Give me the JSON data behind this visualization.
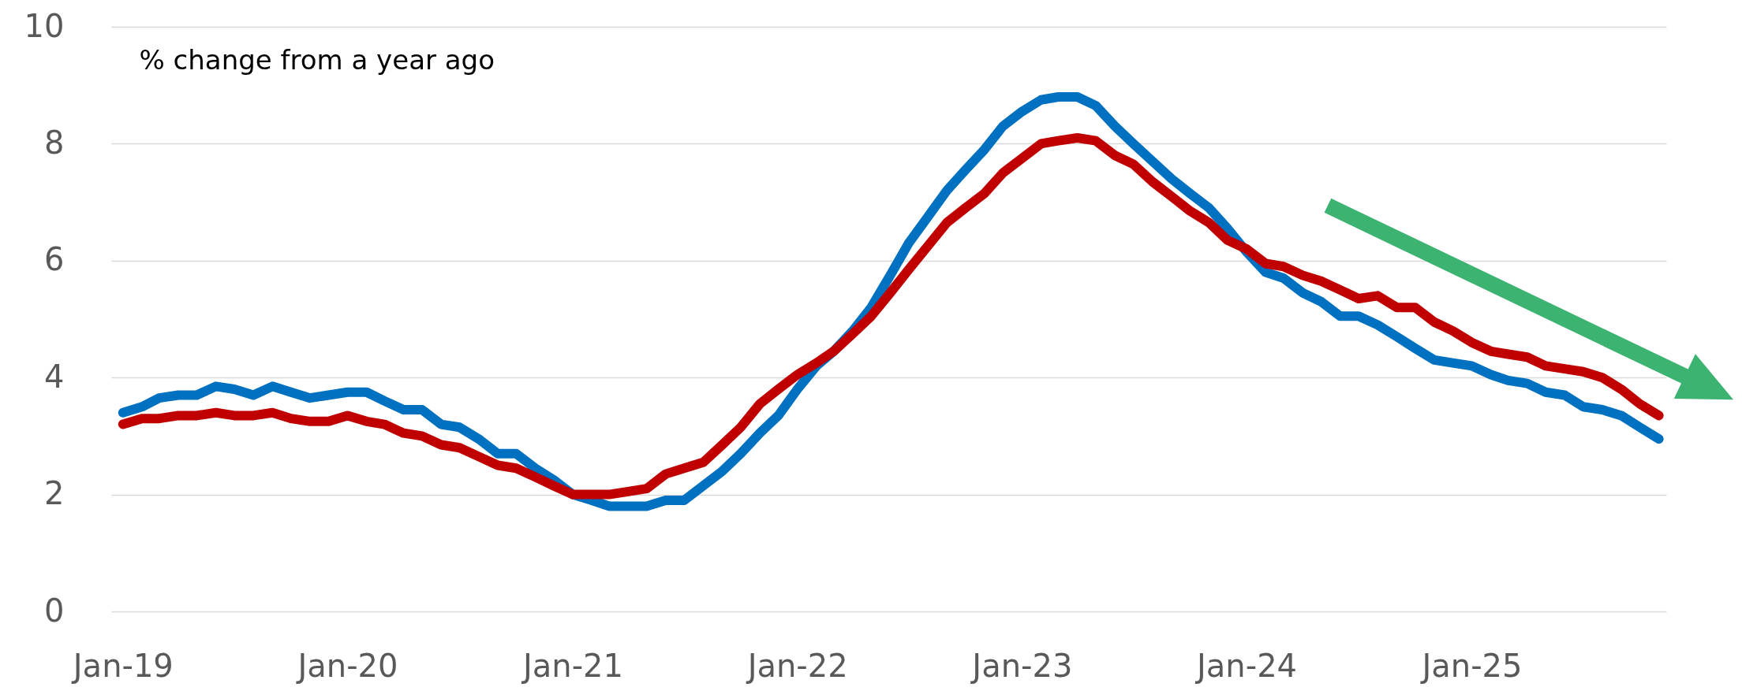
{
  "chart_data": {
    "type": "line",
    "ylabel": "% change from a year ago",
    "x": [
      "2019-01",
      "2019-02",
      "2019-03",
      "2019-04",
      "2019-05",
      "2019-06",
      "2019-07",
      "2019-08",
      "2019-09",
      "2019-10",
      "2019-11",
      "2019-12",
      "2020-01",
      "2020-02",
      "2020-03",
      "2020-04",
      "2020-05",
      "2020-06",
      "2020-07",
      "2020-08",
      "2020-09",
      "2020-10",
      "2020-11",
      "2020-12",
      "2021-01",
      "2021-02",
      "2021-03",
      "2021-04",
      "2021-05",
      "2021-06",
      "2021-07",
      "2021-08",
      "2021-09",
      "2021-10",
      "2021-11",
      "2021-12",
      "2022-01",
      "2022-02",
      "2022-03",
      "2022-04",
      "2022-05",
      "2022-06",
      "2022-07",
      "2022-08",
      "2022-09",
      "2022-10",
      "2022-11",
      "2022-12",
      "2023-01",
      "2023-02",
      "2023-03",
      "2023-04",
      "2023-05",
      "2023-06",
      "2023-07",
      "2023-08",
      "2023-09",
      "2023-10",
      "2023-11",
      "2023-12",
      "2024-01",
      "2024-02",
      "2024-03",
      "2024-04",
      "2024-05",
      "2024-06",
      "2024-07",
      "2024-08",
      "2024-09",
      "2024-10",
      "2024-11",
      "2024-12",
      "2025-01",
      "2025-02",
      "2025-03",
      "2025-04",
      "2025-05",
      "2025-06",
      "2025-07",
      "2025-08",
      "2025-09",
      "2025-10",
      "2025-11"
    ],
    "series": [
      {
        "color": "#0070c0",
        "values": [
          3.4,
          3.5,
          3.65,
          3.7,
          3.7,
          3.85,
          3.8,
          3.7,
          3.85,
          3.75,
          3.65,
          3.7,
          3.75,
          3.75,
          3.6,
          3.45,
          3.45,
          3.2,
          3.15,
          2.95,
          2.7,
          2.7,
          2.45,
          2.25,
          2.0,
          1.9,
          1.8,
          1.8,
          1.8,
          1.9,
          1.9,
          2.15,
          2.4,
          2.7,
          3.05,
          3.35,
          3.8,
          4.2,
          4.45,
          4.8,
          5.2,
          5.75,
          6.3,
          6.75,
          7.2,
          7.55,
          7.9,
          8.3,
          8.55,
          8.75,
          8.8,
          8.8,
          8.65,
          8.3,
          8.0,
          7.7,
          7.4,
          7.15,
          6.9,
          6.55,
          6.15,
          5.8,
          5.7,
          5.45,
          5.3,
          5.05,
          5.05,
          4.9,
          4.7,
          4.5,
          4.3,
          4.25,
          4.2,
          4.05,
          3.95,
          3.9,
          3.75,
          3.7,
          3.5,
          3.45,
          3.35,
          3.15,
          2.95
        ]
      },
      {
        "color": "#c00000",
        "values": [
          3.2,
          3.3,
          3.3,
          3.35,
          3.35,
          3.4,
          3.35,
          3.35,
          3.4,
          3.3,
          3.25,
          3.25,
          3.35,
          3.25,
          3.2,
          3.05,
          3.0,
          2.85,
          2.8,
          2.65,
          2.5,
          2.45,
          2.3,
          2.15,
          2.0,
          2.0,
          2.0,
          2.05,
          2.1,
          2.35,
          2.45,
          2.55,
          2.85,
          3.15,
          3.55,
          3.8,
          4.05,
          4.25,
          4.45,
          4.75,
          5.05,
          5.45,
          5.85,
          6.25,
          6.65,
          6.9,
          7.15,
          7.5,
          7.75,
          8.0,
          8.05,
          8.1,
          8.05,
          7.8,
          7.65,
          7.35,
          7.1,
          6.85,
          6.65,
          6.35,
          6.2,
          5.95,
          5.9,
          5.75,
          5.65,
          5.5,
          5.35,
          5.4,
          5.2,
          5.2,
          4.95,
          4.8,
          4.6,
          4.45,
          4.4,
          4.35,
          4.2,
          4.15,
          4.1,
          4.0,
          3.8,
          3.55,
          3.35
        ]
      }
    ],
    "xlim": [
      "2018-12-13",
      "2025-11-13"
    ],
    "xticks": [
      {
        "value": "2019-01",
        "label": "Jan-19"
      },
      {
        "value": "2020-01",
        "label": "Jan-20"
      },
      {
        "value": "2021-01",
        "label": "Jan-21"
      },
      {
        "value": "2022-01",
        "label": "Jan-22"
      },
      {
        "value": "2023-01",
        "label": "Jan-23"
      },
      {
        "value": "2024-01",
        "label": "Jan-24"
      },
      {
        "value": "2025-01",
        "label": "Jan-25"
      }
    ],
    "ylim": [
      0,
      10
    ],
    "yticks": [
      0,
      2,
      4,
      6,
      8,
      10
    ],
    "grid": "y",
    "line_style": "solid"
  }
}
